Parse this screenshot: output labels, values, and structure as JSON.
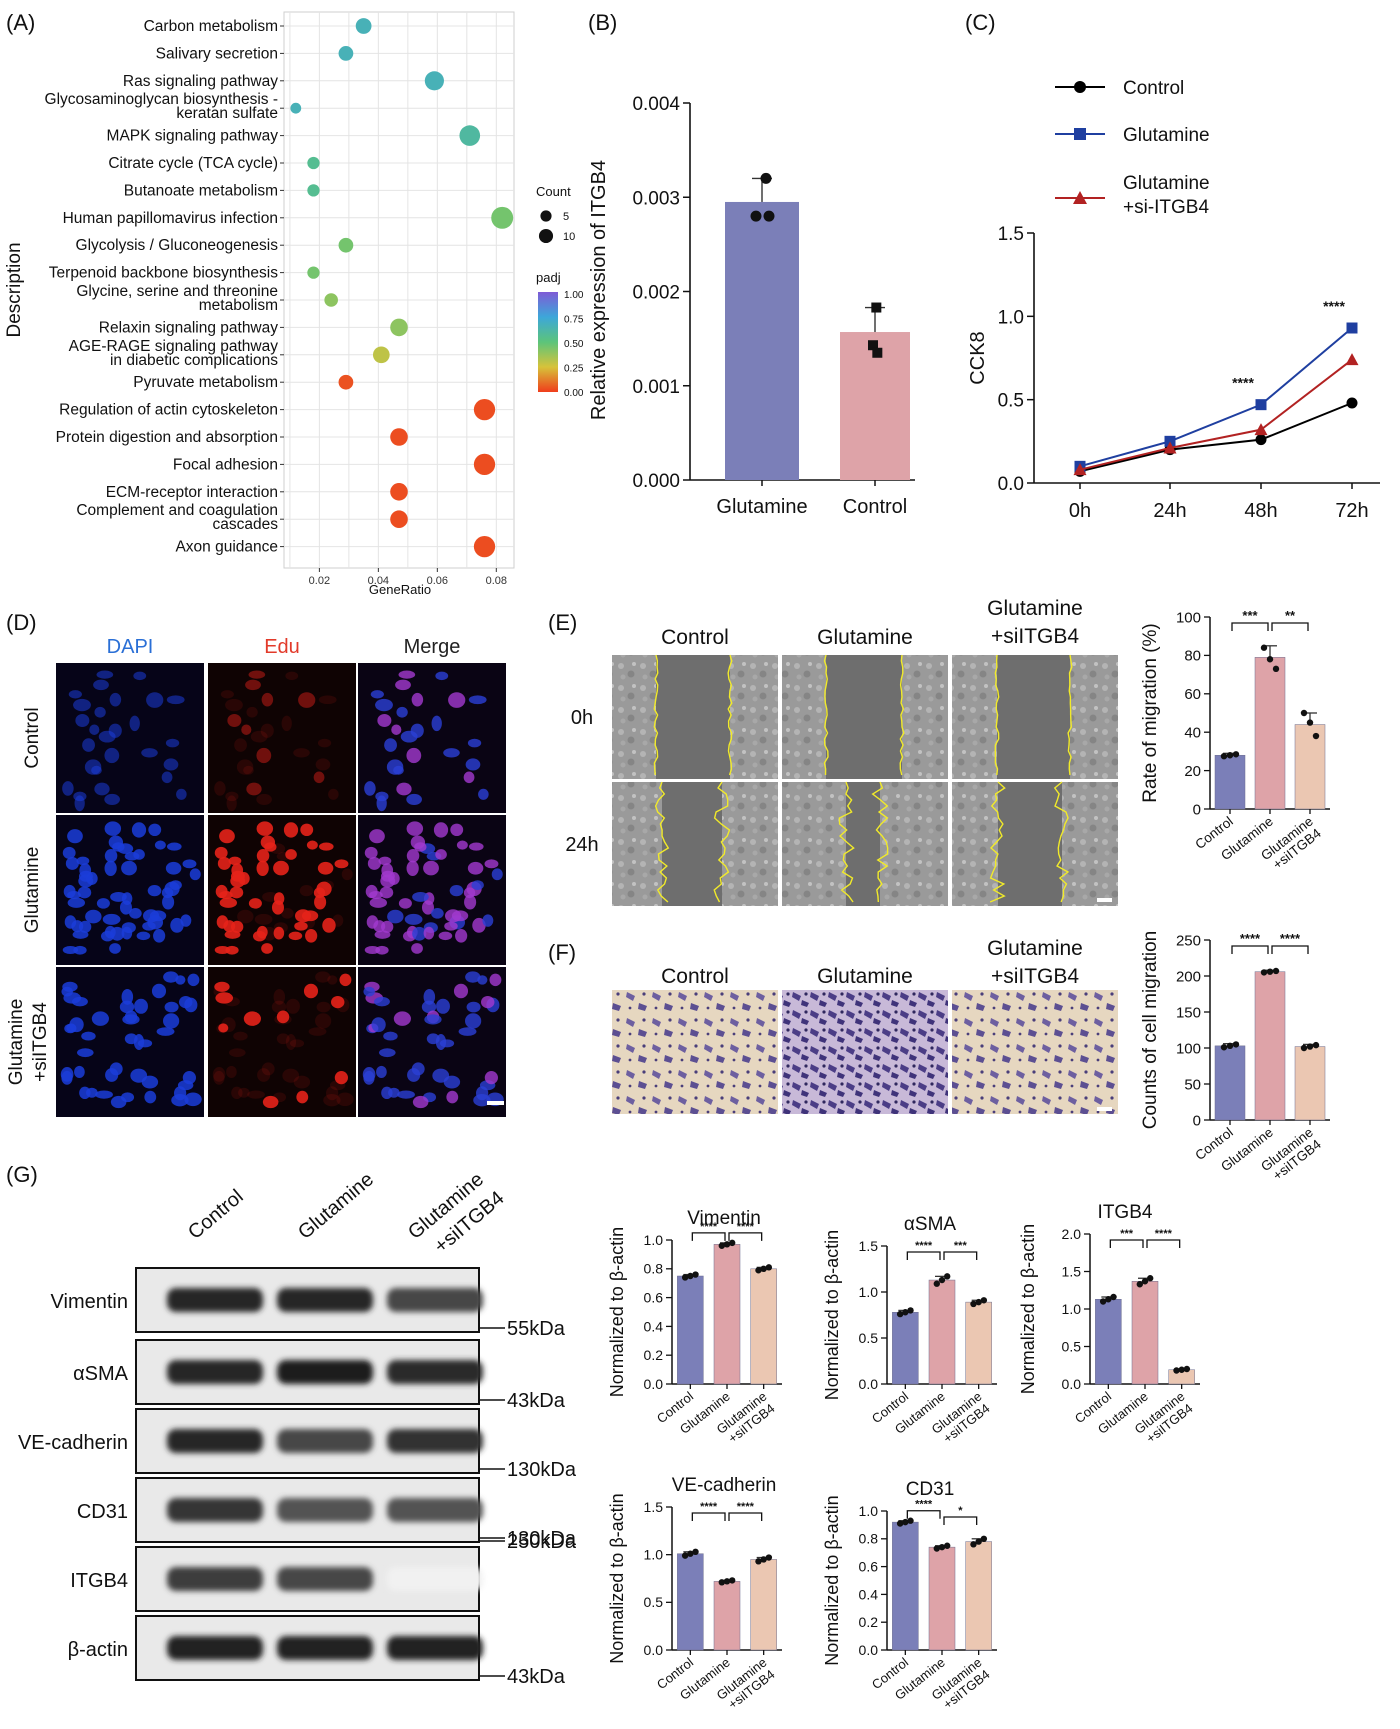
{
  "panels": {
    "A": {
      "label": "(A)",
      "chart_data": {
        "type": "scatter",
        "xlabel": "GeneRatio",
        "ylabel": "Description",
        "xlim": [
          0.008,
          0.086
        ],
        "xticks": [
          0.02,
          0.04,
          0.06,
          0.08
        ],
        "xtick_labels": [
          "0.02",
          "0.04",
          "0.06",
          "0.08"
        ],
        "grid": true,
        "size_legend": {
          "title": "Count",
          "items": [
            {
              "label": "5",
              "count": 5
            },
            {
              "label": "10",
              "count": 10
            }
          ]
        },
        "color_legend": {
          "title": "padj",
          "ticks": [
            "1.00",
            "0.75",
            "0.50",
            "0.25",
            "0.00"
          ],
          "colors": [
            "#7e5bd6",
            "#3da7d9",
            "#5cc47a",
            "#d6c33a",
            "#ef3d1c"
          ]
        },
        "terms": [
          {
            "lines": [
              "Carbon metabolism"
            ],
            "gene_ratio": 0.035,
            "count": 6,
            "padj": 0.66
          },
          {
            "lines": [
              "Salivary secretion"
            ],
            "gene_ratio": 0.029,
            "count": 5,
            "padj": 0.66
          },
          {
            "lines": [
              "Ras signaling pathway"
            ],
            "gene_ratio": 0.059,
            "count": 10,
            "padj": 0.66
          },
          {
            "lines": [
              "Glycosaminoglycan biosynthesis -",
              "keratan sulfate"
            ],
            "gene_ratio": 0.012,
            "count": 2,
            "padj": 0.66
          },
          {
            "lines": [
              "MAPK signaling pathway"
            ],
            "gene_ratio": 0.071,
            "count": 12,
            "padj": 0.6
          },
          {
            "lines": [
              "Citrate cycle (TCA cycle)"
            ],
            "gene_ratio": 0.018,
            "count": 3,
            "padj": 0.56
          },
          {
            "lines": [
              "Butanoate metabolism"
            ],
            "gene_ratio": 0.018,
            "count": 3,
            "padj": 0.56
          },
          {
            "lines": [
              "Human papillomavirus infection"
            ],
            "gene_ratio": 0.082,
            "count": 14,
            "padj": 0.45
          },
          {
            "lines": [
              "Glycolysis / Gluconeogenesis"
            ],
            "gene_ratio": 0.029,
            "count": 5,
            "padj": 0.45
          },
          {
            "lines": [
              "Terpenoid backbone biosynthesis"
            ],
            "gene_ratio": 0.018,
            "count": 3,
            "padj": 0.45
          },
          {
            "lines": [
              "Glycine, serine and threonine",
              "metabolism"
            ],
            "gene_ratio": 0.024,
            "count": 4,
            "padj": 0.4
          },
          {
            "lines": [
              "Relaxin signaling pathway"
            ],
            "gene_ratio": 0.047,
            "count": 8,
            "padj": 0.4
          },
          {
            "lines": [
              "AGE-RAGE signaling pathway",
              "in diabetic complications"
            ],
            "gene_ratio": 0.041,
            "count": 7,
            "padj": 0.3
          },
          {
            "lines": [
              "Pyruvate metabolism"
            ],
            "gene_ratio": 0.029,
            "count": 5,
            "padj": 0.04
          },
          {
            "lines": [
              "Regulation of actin cytoskeleton"
            ],
            "gene_ratio": 0.076,
            "count": 13,
            "padj": 0.03
          },
          {
            "lines": [
              "Protein digestion and absorption"
            ],
            "gene_ratio": 0.047,
            "count": 8,
            "padj": 0.03
          },
          {
            "lines": [
              "Focal adhesion"
            ],
            "gene_ratio": 0.076,
            "count": 13,
            "padj": 0.03
          },
          {
            "lines": [
              "ECM-receptor interaction"
            ],
            "gene_ratio": 0.047,
            "count": 8,
            "padj": 0.03
          },
          {
            "lines": [
              "Complement and coagulation",
              "cascades"
            ],
            "gene_ratio": 0.047,
            "count": 8,
            "padj": 0.03
          },
          {
            "lines": [
              "Axon guidance"
            ],
            "gene_ratio": 0.076,
            "count": 13,
            "padj": 0.03
          }
        ]
      }
    },
    "B": {
      "label": "(B)",
      "chart_data": {
        "type": "bar",
        "ylabel": "Relative expression of ITGB4",
        "ylim": [
          0,
          0.004
        ],
        "yticks": [
          "0.000",
          "0.001",
          "0.002",
          "0.003",
          "0.004"
        ],
        "categories": [
          "Glutamine",
          "Control"
        ],
        "values": [
          0.00295,
          0.00157
        ],
        "errors": [
          0.00025,
          0.00026
        ],
        "points": [
          [
            0.0032,
            0.0028,
            0.0028
          ],
          [
            0.00183,
            0.00143,
            0.00135
          ]
        ],
        "colors": [
          "#7b7fb8",
          "#dea3a8"
        ]
      }
    },
    "C": {
      "label": "(C)",
      "chart_data": {
        "type": "line",
        "ylabel": "CCK8",
        "categories": [
          "0h",
          "24h",
          "48h",
          "72h"
        ],
        "ylim": [
          0,
          1.5
        ],
        "yticks": [
          "0.0",
          "0.5",
          "1.0",
          "1.5"
        ],
        "series": [
          {
            "name": "Control",
            "values": [
              0.07,
              0.2,
              0.26,
              0.48
            ],
            "color": "#000000",
            "marker": "circle"
          },
          {
            "name": "Glutamine",
            "values": [
              0.1,
              0.25,
              0.47,
              0.93
            ],
            "color": "#1f3fa0",
            "marker": "square"
          },
          {
            "name": "Glutamine +si-ITGB4",
            "values": [
              0.08,
              0.21,
              0.32,
              0.74
            ],
            "color": "#b22222",
            "marker": "triangle"
          }
        ],
        "legend_lines": [
          [
            "Control"
          ],
          [
            "Glutamine"
          ],
          [
            "Glutamine",
            "+si-ITGB4"
          ]
        ],
        "annotations": [
          {
            "at": "48h",
            "text": "****"
          },
          {
            "at": "72h",
            "text": "****"
          }
        ]
      }
    },
    "D": {
      "label": "(D)",
      "columns": [
        "DAPI",
        "Edu",
        "Merge"
      ],
      "column_colors": [
        "#2a6fd6",
        "#e23a2a",
        "#222222"
      ],
      "rows": [
        [
          "Control"
        ],
        [
          "Glutamine"
        ],
        [
          "Glutamine",
          "+siITGB4"
        ]
      ]
    },
    "E": {
      "label": "(E)",
      "columns": [
        [
          "Control"
        ],
        [
          "Glutamine"
        ],
        [
          "Glutamine",
          "+siITGB4"
        ]
      ],
      "rows": [
        "0h",
        "24h"
      ],
      "chart_data": {
        "type": "bar",
        "ylabel": "Rate of migration (%)",
        "ylim": [
          0,
          100
        ],
        "yticks": [
          "0",
          "20",
          "40",
          "60",
          "80",
          "100"
        ],
        "categories": [
          "Control",
          "Glutamine",
          "Glutamine +siITGB4"
        ],
        "tick_lines": [
          [
            "Control"
          ],
          [
            "Glutamine"
          ],
          [
            "Glutamine",
            "+siITGB4"
          ]
        ],
        "values": [
          28,
          79,
          44
        ],
        "errors": [
          1,
          6,
          6
        ],
        "points": [
          [
            27.5,
            28,
            28.5
          ],
          [
            84,
            78,
            73
          ],
          [
            50,
            45,
            38
          ]
        ],
        "colors": [
          "#7b7fb8",
          "#dea3a8",
          "#ebc7b2"
        ],
        "significance": [
          {
            "from": 0,
            "to": 1,
            "text": "***"
          },
          {
            "from": 1,
            "to": 2,
            "text": "**"
          }
        ]
      }
    },
    "F": {
      "label": "(F)",
      "columns": [
        [
          "Control"
        ],
        [
          "Glutamine"
        ],
        [
          "Glutamine",
          "+siITGB4"
        ]
      ],
      "chart_data": {
        "type": "bar",
        "ylabel": "Counts of cell migration",
        "ylim": [
          0,
          250
        ],
        "yticks": [
          "0",
          "50",
          "100",
          "150",
          "200",
          "250"
        ],
        "categories": [
          "Control",
          "Glutamine",
          "Glutamine +siITGB4"
        ],
        "tick_lines": [
          [
            "Control"
          ],
          [
            "Glutamine"
          ],
          [
            "Glutamine",
            "+siITGB4"
          ]
        ],
        "values": [
          103,
          206,
          102
        ],
        "errors": [
          3,
          2,
          3
        ],
        "points": [
          [
            101,
            103,
            105
          ],
          [
            205,
            206,
            207
          ],
          [
            100,
            102,
            104
          ]
        ],
        "colors": [
          "#7b7fb8",
          "#dea3a8",
          "#ebc7b2"
        ],
        "significance": [
          {
            "from": 0,
            "to": 1,
            "text": "****"
          },
          {
            "from": 1,
            "to": 2,
            "text": "****"
          }
        ]
      }
    },
    "G": {
      "label": "(G)",
      "blot": {
        "lanes": [
          [
            "Control"
          ],
          [
            "Glutamine"
          ],
          [
            "Glutamine",
            "+siITGB4"
          ]
        ],
        "bands": [
          {
            "name": "Vimentin",
            "marker": "55kDa",
            "intensity": [
              0.95,
              0.95,
              0.8
            ]
          },
          {
            "name": "αSMA",
            "marker": "43kDa",
            "intensity": [
              0.95,
              0.98,
              0.92
            ]
          },
          {
            "name": "VE-cadherin",
            "marker": "130kDa",
            "intensity": [
              0.95,
              0.8,
              0.9
            ]
          },
          {
            "name": "CD31",
            "marker": "130kDa",
            "intensity": [
              0.88,
              0.75,
              0.75
            ]
          },
          {
            "name": "ITGB4",
            "marker": "250kDa",
            "intensity": [
              0.85,
              0.8,
              0.06
            ]
          },
          {
            "name": "β-actin",
            "marker": "43kDa",
            "intensity": [
              0.97,
              0.97,
              0.97
            ]
          }
        ]
      },
      "chart_data": [
        {
          "type": "bar",
          "title": "Vimentin",
          "ylabel": "Normalized to β-actin",
          "ylim": [
            0,
            1.0
          ],
          "yticks": [
            "0.0",
            "0.2",
            "0.4",
            "0.6",
            "0.8",
            "1.0"
          ],
          "categories": [
            "Control",
            "Glutamine",
            "Glutamine +siITGB4"
          ],
          "tick_lines": [
            [
              "Control"
            ],
            [
              "Glutamine"
            ],
            [
              "Glutamine",
              "+siITGB4"
            ]
          ],
          "values": [
            0.75,
            0.97,
            0.8
          ],
          "errors": [
            0.01,
            0.01,
            0.01
          ],
          "points": [
            [
              0.74,
              0.75,
              0.76
            ],
            [
              0.96,
              0.97,
              0.98
            ],
            [
              0.79,
              0.8,
              0.81
            ]
          ],
          "colors": [
            "#7b7fb8",
            "#dea3a8",
            "#ebc7b2"
          ],
          "significance": [
            {
              "from": 0,
              "to": 1,
              "text": "****"
            },
            {
              "from": 1,
              "to": 2,
              "text": "****"
            }
          ]
        },
        {
          "type": "bar",
          "title": "αSMA",
          "ylabel": "Normalized to β-actin",
          "ylim": [
            0,
            1.5
          ],
          "yticks": [
            "0.0",
            "0.5",
            "1.0",
            "1.5"
          ],
          "categories": [
            "Control",
            "Glutamine",
            "Glutamine +siITGB4"
          ],
          "tick_lines": [
            [
              "Control"
            ],
            [
              "Glutamine"
            ],
            [
              "Glutamine",
              "+siITGB4"
            ]
          ],
          "values": [
            0.78,
            1.13,
            0.89
          ],
          "errors": [
            0.02,
            0.04,
            0.02
          ],
          "points": [
            [
              0.76,
              0.78,
              0.8
            ],
            [
              1.09,
              1.13,
              1.17
            ],
            [
              0.87,
              0.89,
              0.91
            ]
          ],
          "colors": [
            "#7b7fb8",
            "#dea3a8",
            "#ebc7b2"
          ],
          "significance": [
            {
              "from": 0,
              "to": 1,
              "text": "****"
            },
            {
              "from": 1,
              "to": 2,
              "text": "***"
            }
          ]
        },
        {
          "type": "bar",
          "title": "ITGB4",
          "ylabel": "Normalized to β-actin",
          "ylim": [
            0,
            2.0
          ],
          "yticks": [
            "0.0",
            "0.5",
            "1.0",
            "1.5",
            "2.0"
          ],
          "categories": [
            "Control",
            "Glutamine",
            "Glutamine +siITGB4"
          ],
          "tick_lines": [
            [
              "Control"
            ],
            [
              "Glutamine"
            ],
            [
              "Glutamine",
              "+siITGB4"
            ]
          ],
          "values": [
            1.13,
            1.37,
            0.19
          ],
          "errors": [
            0.03,
            0.04,
            0.01
          ],
          "points": [
            [
              1.1,
              1.13,
              1.16
            ],
            [
              1.33,
              1.37,
              1.41
            ],
            [
              0.18,
              0.19,
              0.2
            ]
          ],
          "colors": [
            "#7b7fb8",
            "#dea3a8",
            "#ebc7b2"
          ],
          "significance": [
            {
              "from": 0,
              "to": 1,
              "text": "***"
            },
            {
              "from": 1,
              "to": 2,
              "text": "****"
            }
          ]
        },
        {
          "type": "bar",
          "title": "VE-cadherin",
          "ylabel": "Normalized to β-actin",
          "ylim": [
            0,
            1.5
          ],
          "yticks": [
            "0.0",
            "0.5",
            "1.0",
            "1.5"
          ],
          "categories": [
            "Control",
            "Glutamine",
            "Glutamine +siITGB4"
          ],
          "tick_lines": [
            [
              "Control"
            ],
            [
              "Glutamine"
            ],
            [
              "Glutamine",
              "+siITGB4"
            ]
          ],
          "values": [
            1.01,
            0.72,
            0.95
          ],
          "errors": [
            0.02,
            0.01,
            0.02
          ],
          "points": [
            [
              0.99,
              1.01,
              1.03
            ],
            [
              0.71,
              0.72,
              0.73
            ],
            [
              0.93,
              0.95,
              0.97
            ]
          ],
          "colors": [
            "#7b7fb8",
            "#dea3a8",
            "#ebc7b2"
          ],
          "significance": [
            {
              "from": 0,
              "to": 1,
              "text": "****"
            },
            {
              "from": 1,
              "to": 2,
              "text": "****"
            }
          ]
        },
        {
          "type": "bar",
          "title": "CD31",
          "ylabel": "Normalized to β-actin",
          "ylim": [
            0,
            1.0
          ],
          "yticks": [
            "0.0",
            "0.2",
            "0.4",
            "0.6",
            "0.8",
            "1.0"
          ],
          "categories": [
            "Control",
            "Glutamine",
            "Glutamine +siITGB4"
          ],
          "tick_lines": [
            [
              "Control"
            ],
            [
              "Glutamine"
            ],
            [
              "Glutamine",
              "+siITGB4"
            ]
          ],
          "values": [
            0.92,
            0.74,
            0.78
          ],
          "errors": [
            0.01,
            0.01,
            0.02
          ],
          "points": [
            [
              0.91,
              0.92,
              0.93
            ],
            [
              0.73,
              0.74,
              0.75
            ],
            [
              0.76,
              0.78,
              0.8
            ]
          ],
          "colors": [
            "#7b7fb8",
            "#dea3a8",
            "#ebc7b2"
          ],
          "significance": [
            {
              "from": 0,
              "to": 1,
              "text": "****"
            },
            {
              "from": 1,
              "to": 2,
              "text": "*"
            }
          ]
        }
      ]
    }
  }
}
